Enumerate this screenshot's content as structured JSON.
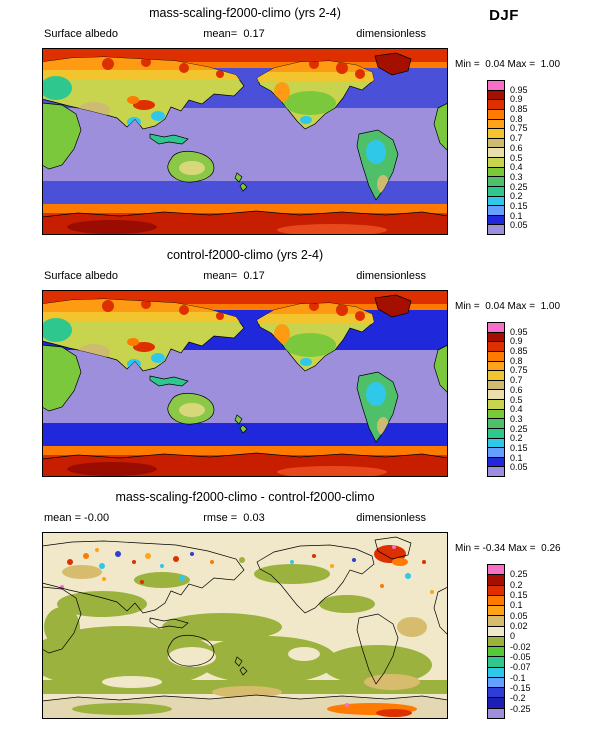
{
  "season": "DJF",
  "panels": [
    {
      "title": "mass-scaling-f2000-climo (yrs 2-4)",
      "left_label": "Surface albedo",
      "center_label": "mean=  0.17",
      "units_label": "dimensionless",
      "minmax_label": "Min =  0.04 Max =  1.00"
    },
    {
      "title": "control-f2000-climo (yrs 2-4)",
      "left_label": "Surface albedo",
      "center_label": "mean=  0.17",
      "units_label": "dimensionless",
      "minmax_label": "Min =  0.04 Max =  1.00"
    },
    {
      "title": "mass-scaling-f2000-climo - control-f2000-climo",
      "left_label": "mean = -0.00",
      "center_label": "rmse =  0.03",
      "units_label": "dimensionless",
      "minmax_label": "Min = -0.34 Max =  0.26"
    }
  ],
  "chart_data": [
    {
      "type": "heatmap",
      "subtype": "filled-contour-world-map",
      "projection": "cylindrical-equidistant-pacific-centered",
      "title": "mass-scaling-f2000-climo (yrs 2-4)",
      "season": "DJF",
      "variable": "Surface albedo",
      "units": "dimensionless",
      "stats": {
        "mean": 0.17,
        "min": 0.04,
        "max": 1.0
      },
      "colorbar_levels": [
        0.95,
        0.9,
        0.85,
        0.8,
        0.75,
        0.7,
        0.6,
        0.5,
        0.4,
        0.3,
        0.25,
        0.2,
        0.15,
        0.1,
        0.05
      ],
      "colorbar_colors_top_to_bottom": [
        "#F670C8",
        "#A50F00",
        "#DD2F00",
        "#FF7A00",
        "#FFA319",
        "#F2C52F",
        "#CDBB72",
        "#E8DFAC",
        "#C9D44E",
        "#7CC83C",
        "#4FC06A",
        "#2EC88E",
        "#30C8E8",
        "#64A0FF",
        "#2028DC",
        "#9E8FDC"
      ]
    },
    {
      "type": "heatmap",
      "subtype": "filled-contour-world-map",
      "projection": "cylindrical-equidistant-pacific-centered",
      "title": "control-f2000-climo (yrs 2-4)",
      "season": "DJF",
      "variable": "Surface albedo",
      "units": "dimensionless",
      "stats": {
        "mean": 0.17,
        "min": 0.04,
        "max": 1.0
      },
      "colorbar_levels": [
        0.95,
        0.9,
        0.85,
        0.8,
        0.75,
        0.7,
        0.6,
        0.5,
        0.4,
        0.3,
        0.25,
        0.2,
        0.15,
        0.1,
        0.05
      ],
      "colorbar_colors_top_to_bottom": [
        "#F670C8",
        "#A50F00",
        "#DD2F00",
        "#FF7A00",
        "#FFA319",
        "#F2C52F",
        "#CDBB72",
        "#E8DFAC",
        "#C9D44E",
        "#7CC83C",
        "#4FC06A",
        "#2EC88E",
        "#30C8E8",
        "#64A0FF",
        "#2028DC",
        "#9E8FDC"
      ]
    },
    {
      "type": "heatmap",
      "subtype": "filled-contour-world-map-difference",
      "projection": "cylindrical-equidistant-pacific-centered",
      "title": "mass-scaling-f2000-climo - control-f2000-climo",
      "season": "DJF",
      "units": "dimensionless",
      "stats": {
        "mean": -0.0,
        "rmse": 0.03,
        "min": -0.34,
        "max": 0.26
      },
      "colorbar_levels": [
        0.25,
        0.2,
        0.15,
        0.1,
        0.05,
        0.02,
        0,
        -0.02,
        -0.05,
        -0.07,
        -0.1,
        -0.15,
        -0.2,
        -0.25
      ],
      "colorbar_colors_top_to_bottom": [
        "#F670C8",
        "#A50F00",
        "#DD2F00",
        "#FF7A00",
        "#FFA319",
        "#D7BC6E",
        "#F0E8C8",
        "#9CB23F",
        "#55C83C",
        "#2EC88E",
        "#30C8E8",
        "#64A0FF",
        "#2E3CD8",
        "#1E1EB4",
        "#9E8FDC"
      ]
    }
  ]
}
